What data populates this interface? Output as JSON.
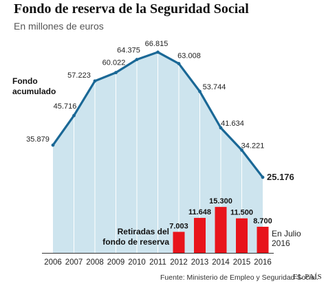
{
  "title": "Fondo de reserva de la Seguridad Social",
  "subtitle": "En millones de euros",
  "source": "Fuente: Ministerio de Empleo y Seguridad Social.",
  "brand": "EL PAÍS",
  "colors": {
    "line": "#1a6896",
    "area": "#cde4ee",
    "gridline": "#ffffff",
    "bar": "#e8141b",
    "text": "#222222"
  },
  "chart_data": [
    {
      "type": "area",
      "series": [
        {
          "name": "Fondo acumulado",
          "values": [
            35879,
            45716,
            57223,
            60022,
            64375,
            66815,
            63008,
            53744,
            41634,
            34221,
            25176
          ],
          "labels": [
            "35.879",
            "45.716",
            "57.223",
            "60.022",
            "64.375",
            "66.815",
            "63.008",
            "53.744",
            "41.634",
            "34.221",
            "25.176"
          ]
        }
      ],
      "categories": [
        "2006",
        "2007",
        "2008",
        "2009",
        "2010",
        "2011",
        "2012",
        "2013",
        "2014",
        "2015",
        "2016"
      ],
      "series_label_lines": [
        "Fondo",
        "acumulado"
      ],
      "ylim": [
        0,
        70000
      ]
    },
    {
      "type": "bar",
      "series": [
        {
          "name": "Retiradas del fondo de reserva",
          "categories": [
            "2012",
            "2013",
            "2014",
            "2015",
            "2016"
          ],
          "values": [
            7003,
            11648,
            15300,
            11500,
            8700
          ],
          "labels": [
            "7.003",
            "11.648",
            "15.300",
            "11.500",
            "8.700"
          ]
        }
      ],
      "series_label_lines": [
        "Retiradas del",
        "fondo de reserva"
      ],
      "annotation_lines": [
        "En Julio",
        "2016"
      ],
      "ylim": [
        0,
        70000
      ]
    }
  ]
}
